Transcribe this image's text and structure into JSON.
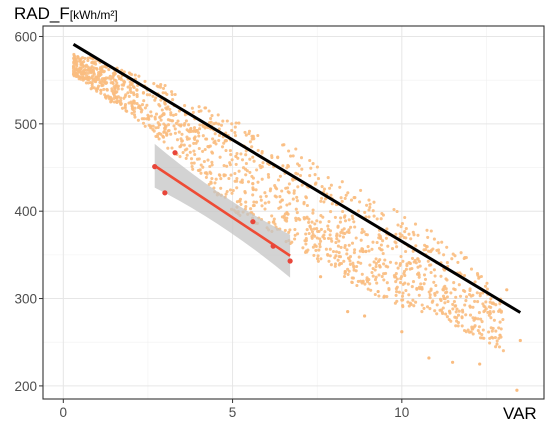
{
  "chart_data": {
    "type": "scatter",
    "xlabel": "VAR",
    "ylabel": "RAD_F",
    "ylabel_unit": "[kWh/m²]",
    "xlim": [
      -0.6,
      14.2
    ],
    "ylim": [
      185,
      612
    ],
    "x_ticks": [
      0,
      5,
      10
    ],
    "y_ticks": [
      200,
      300,
      400,
      500,
      600
    ],
    "grid": true,
    "colors": {
      "background_points": "#f9bc80",
      "highlight_points": "#e8463a",
      "highlight_fit": "#ee4b35",
      "overall_fit": "#000000",
      "confidence_band": "#c4c4c4",
      "grid": "#e6e6e6",
      "frame": "#333333"
    },
    "series": [
      {
        "role": "background",
        "description_of_cloud": "dense band of orange points",
        "band": [
          {
            "x": 0.3,
            "y_low": 555,
            "y_high": 580
          },
          {
            "x": 1,
            "y_low": 535,
            "y_high": 575
          },
          {
            "x": 2,
            "y_low": 510,
            "y_high": 560
          },
          {
            "x": 3,
            "y_low": 475,
            "y_high": 545
          },
          {
            "x": 4,
            "y_low": 440,
            "y_high": 525
          },
          {
            "x": 5,
            "y_low": 400,
            "y_high": 505
          },
          {
            "x": 6,
            "y_low": 375,
            "y_high": 485
          },
          {
            "x": 7,
            "y_low": 355,
            "y_high": 470
          },
          {
            "x": 8,
            "y_low": 330,
            "y_high": 440
          },
          {
            "x": 9,
            "y_low": 305,
            "y_high": 420
          },
          {
            "x": 10,
            "y_low": 290,
            "y_high": 400
          },
          {
            "x": 11,
            "y_low": 280,
            "y_high": 375
          },
          {
            "x": 12,
            "y_low": 260,
            "y_high": 345
          },
          {
            "x": 13,
            "y_low": 240,
            "y_high": 300
          }
        ],
        "outliers": [
          {
            "x": 8.4,
            "y": 285
          },
          {
            "x": 8.9,
            "y": 280
          },
          {
            "x": 10.0,
            "y": 262
          },
          {
            "x": 10.8,
            "y": 232
          },
          {
            "x": 11.5,
            "y": 227
          },
          {
            "x": 12.3,
            "y": 225
          },
          {
            "x": 12.9,
            "y": 258
          },
          {
            "x": 13.4,
            "y": 195
          },
          {
            "x": 13.5,
            "y": 252
          },
          {
            "x": 13.1,
            "y": 310
          },
          {
            "x": 7.6,
            "y": 325
          },
          {
            "x": 9.3,
            "y": 308
          }
        ]
      },
      {
        "role": "highlight",
        "points": [
          {
            "x": 2.7,
            "y": 451
          },
          {
            "x": 3.0,
            "y": 421
          },
          {
            "x": 3.3,
            "y": 467
          },
          {
            "x": 5.6,
            "y": 388
          },
          {
            "x": 6.2,
            "y": 360
          },
          {
            "x": 6.7,
            "y": 343
          }
        ]
      }
    ],
    "fits": [
      {
        "role": "overall",
        "x": [
          0.3,
          13.5
        ],
        "y": [
          591,
          284
        ]
      },
      {
        "role": "highlight",
        "x": [
          2.7,
          6.7
        ],
        "y": [
          452,
          349
        ],
        "ci_upper": [
          477,
          373
        ],
        "ci_lower": [
          427,
          324
        ],
        "ci_mid": [
          4.7,
          400
        ],
        "ci_mid_halfwidth": 12
      }
    ]
  }
}
